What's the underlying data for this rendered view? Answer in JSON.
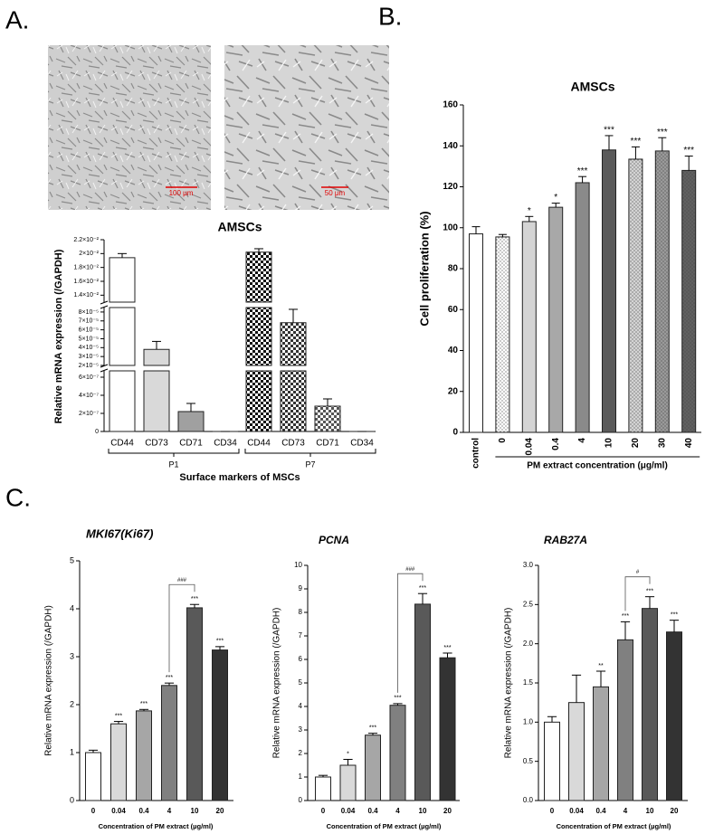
{
  "panel_labels": [
    "A.",
    "B.",
    "C."
  ],
  "images": [
    {
      "scale_bar": "100 μm"
    },
    {
      "scale_bar": "50 μm"
    }
  ],
  "chart_data": [
    {
      "type": "broken_bar",
      "title": "AMSCs",
      "ylabel": "Relative mRNA expression (/GAPDH)",
      "xlabel": "Surface markers of MSCs",
      "categories": [
        "CD44",
        "CD73",
        "CD71",
        "CD34"
      ],
      "series": [
        {
          "name": "P1",
          "values": [
            0.0194,
            3.8e-05,
            2.2e-07,
            0
          ],
          "errors": [
            0.0006,
            9e-06,
            9e-08,
            0
          ],
          "colors": [
            "#ffffff",
            "#d9d9d9",
            "#a0a0a0",
            "#ffffff"
          ],
          "pattern": "solid"
        },
        {
          "name": "P7",
          "values": [
            0.0202,
            6.8e-05,
            2.8e-07,
            0
          ],
          "errors": [
            0.0005,
            1.5e-05,
            8e-08,
            0
          ],
          "colors": [
            "#111111",
            "#333333",
            "#555555",
            "#111111"
          ],
          "pattern": "checker"
        }
      ],
      "y_segments": [
        {
          "ylim": [
            0,
            6.7e-07
          ],
          "yticks": [
            0,
            {
              "value": 2e-07,
              "label": "2×10⁻⁷"
            },
            {
              "value": 4e-07,
              "label": "4×10⁻⁷"
            },
            {
              "value": 6e-07,
              "label": "6×10⁻⁷"
            }
          ]
        },
        {
          "ylim": [
            2e-05,
            8.5e-05
          ],
          "yticks": [
            {
              "value": 2e-05,
              "label": "2×10⁻⁵"
            },
            {
              "value": 3e-05,
              "label": "3×10⁻⁵"
            },
            {
              "value": 4e-05,
              "label": "4×10⁻⁵"
            },
            {
              "value": 5e-05,
              "label": "5×10⁻⁵"
            },
            {
              "value": 6e-05,
              "label": "6×10⁻⁵"
            },
            {
              "value": 7e-05,
              "label": "7×10⁻⁵"
            },
            {
              "value": 8e-05,
              "label": "8×10⁻⁵"
            }
          ]
        },
        {
          "ylim": [
            0.013,
            0.022
          ],
          "yticks": [
            {
              "value": 0.014,
              "label": "1.4×10⁻²"
            },
            {
              "value": 0.016,
              "label": "1.6×10⁻²"
            },
            {
              "value": 0.018,
              "label": "1.8×10⁻²"
            },
            {
              "value": 0.02,
              "label": "2×10⁻²"
            },
            {
              "value": 0.022,
              "label": "2.2×10⁻²"
            }
          ]
        }
      ]
    },
    {
      "type": "bar",
      "title": "AMSCs",
      "ylabel": "Cell proliferation (%)",
      "xlabel": "PM extract concentration (μg/ml)",
      "categories": [
        "control",
        "0",
        "0.04",
        "0.4",
        "4",
        "10",
        "20",
        "30",
        "40"
      ],
      "values": [
        97,
        95.5,
        103,
        110,
        122,
        138,
        133.5,
        137.5,
        128
      ],
      "errors": [
        3.5,
        1.2,
        2.5,
        2,
        3,
        7,
        6,
        6.5,
        7
      ],
      "annotations": [
        null,
        null,
        "*",
        "*",
        "***",
        "***",
        "***",
        "***",
        "***"
      ],
      "colors": [
        "#ffffff",
        "#ffffff",
        "#d4d4d4",
        "#a8a8a8",
        "#8a8a8a",
        "#5a5a5a",
        "#d4d4d4",
        "#9a9a9a",
        "#606060"
      ],
      "patterns": [
        "solid",
        "dots",
        "solid",
        "solid",
        "solid",
        "solid",
        "dots",
        "dots",
        "dots"
      ],
      "ylim": [
        0,
        160
      ],
      "yticks": [
        0,
        20,
        40,
        60,
        80,
        100,
        120,
        140,
        160
      ]
    },
    {
      "type": "bar",
      "title": "MKI67(Ki67)",
      "ylabel": "Relative mRNA expression (/GAPDH)",
      "xlabel": "Concentration of PM extract (µg/ml)",
      "categories": [
        "0",
        "0.04",
        "0.4",
        "4",
        "10",
        "20"
      ],
      "values": [
        1.0,
        1.6,
        1.87,
        2.4,
        4.02,
        3.14
      ],
      "errors": [
        0.05,
        0.05,
        0.03,
        0.05,
        0.07,
        0.07
      ],
      "annotations": [
        null,
        "***",
        "***",
        "***",
        "***",
        "***"
      ],
      "colors": [
        "#ffffff",
        "#d9d9d9",
        "#a6a6a6",
        "#808080",
        "#595959",
        "#333333"
      ],
      "ylim": [
        0,
        5
      ],
      "yticks": [
        0,
        1,
        2,
        3,
        4,
        5
      ],
      "comparison": {
        "categories": [
          "4",
          "10"
        ],
        "label": "###"
      }
    },
    {
      "type": "bar",
      "title": "PCNA",
      "ylabel": "Relative mRNA expression (/GAPDH)",
      "xlabel": "Concentration of PM extract (µg/ml)",
      "categories": [
        "0",
        "0.04",
        "0.4",
        "4",
        "10",
        "20"
      ],
      "values": [
        1.0,
        1.5,
        2.78,
        4.05,
        8.35,
        6.07
      ],
      "errors": [
        0.07,
        0.25,
        0.08,
        0.07,
        0.45,
        0.2
      ],
      "annotations": [
        null,
        "*",
        "***",
        "***",
        "***",
        "***"
      ],
      "colors": [
        "#ffffff",
        "#d9d9d9",
        "#a6a6a6",
        "#808080",
        "#595959",
        "#333333"
      ],
      "ylim": [
        0,
        10
      ],
      "yticks": [
        0,
        1,
        2,
        3,
        4,
        5,
        6,
        7,
        8,
        9,
        10
      ],
      "comparison": {
        "categories": [
          "4",
          "10"
        ],
        "label": "###"
      }
    },
    {
      "type": "bar",
      "title": "RAB27A",
      "ylabel": "Relative mRNA expression (/GAPDH)",
      "xlabel": "Concentration of PM extract (µg/ml)",
      "categories": [
        "0",
        "0.04",
        "0.4",
        "4",
        "10",
        "20"
      ],
      "values": [
        1.0,
        1.25,
        1.45,
        2.05,
        2.45,
        2.15
      ],
      "errors": [
        0.07,
        0.35,
        0.2,
        0.23,
        0.15,
        0.15
      ],
      "annotations": [
        null,
        null,
        "**",
        "***",
        "***",
        "***"
      ],
      "colors": [
        "#ffffff",
        "#d9d9d9",
        "#a6a6a6",
        "#808080",
        "#595959",
        "#333333"
      ],
      "ylim": [
        0,
        3
      ],
      "yticks": [
        {
          "value": 0,
          "label": "0.0"
        },
        {
          "value": 0.5,
          "label": "0.5"
        },
        {
          "value": 1,
          "label": "1.0"
        },
        {
          "value": 1.5,
          "label": "1.5"
        },
        {
          "value": 2,
          "label": "2.0"
        },
        {
          "value": 2.5,
          "label": "2.5"
        },
        {
          "value": 3,
          "label": "3.0"
        }
      ],
      "comparison": {
        "categories": [
          "4",
          "10"
        ],
        "label": "#"
      }
    }
  ]
}
